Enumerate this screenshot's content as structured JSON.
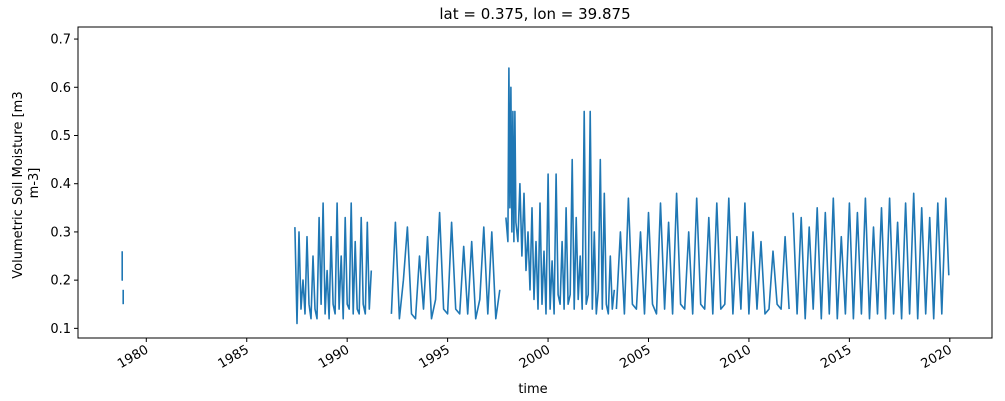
{
  "chart_data": {
    "type": "line",
    "title": "lat = 0.375, lon = 39.875",
    "xlabel": "time",
    "ylabel_lines": [
      "Volumetric Soil Moisture [m3",
      "m-3]"
    ],
    "xlim": [
      1976.6,
      2022.1
    ],
    "ylim": [
      0.08,
      0.725
    ],
    "x_ticks": [
      1980,
      1985,
      1990,
      1995,
      2000,
      2005,
      2010,
      2015,
      2020
    ],
    "x_tick_labels": [
      "1980",
      "1985",
      "1990",
      "1995",
      "2000",
      "2005",
      "2010",
      "2015",
      "2020"
    ],
    "y_ticks": [
      0.1,
      0.2,
      0.3,
      0.4,
      0.5,
      0.6,
      0.7
    ],
    "y_tick_labels": [
      "0.1",
      "0.2",
      "0.3",
      "0.4",
      "0.5",
      "0.6",
      "0.7"
    ],
    "grid": false,
    "series": [
      {
        "color": "#1f77b4",
        "segments": [
          {
            "x": [
              1978.8,
              1978.8,
              1978.8
            ],
            "y": [
              0.26,
              0.2,
              0.26
            ]
          },
          {
            "x": [
              1978.85,
              1978.85
            ],
            "y": [
              0.18,
              0.15
            ]
          },
          {
            "x": [
              1987.4,
              1987.5,
              1987.6,
              1987.7,
              1987.8,
              1987.9,
              1988.0,
              1988.1,
              1988.2,
              1988.3,
              1988.4,
              1988.5,
              1988.6,
              1988.7,
              1988.8,
              1988.9,
              1989.0,
              1989.1,
              1989.2,
              1989.3,
              1989.4,
              1989.5,
              1989.6,
              1989.7,
              1989.8,
              1989.9,
              1990.0,
              1990.1,
              1990.2,
              1990.3,
              1990.4,
              1990.5,
              1990.6,
              1990.7,
              1990.8,
              1990.9,
              1991.0,
              1991.1,
              1991.2
            ],
            "y": [
              0.31,
              0.11,
              0.3,
              0.14,
              0.2,
              0.13,
              0.29,
              0.15,
              0.12,
              0.25,
              0.14,
              0.12,
              0.33,
              0.15,
              0.36,
              0.13,
              0.22,
              0.12,
              0.29,
              0.15,
              0.13,
              0.36,
              0.14,
              0.25,
              0.12,
              0.33,
              0.15,
              0.14,
              0.36,
              0.13,
              0.28,
              0.14,
              0.13,
              0.33,
              0.15,
              0.13,
              0.32,
              0.14,
              0.22
            ]
          },
          {
            "x": [
              1992.2,
              1992.4,
              1992.6,
              1992.8,
              1993.0,
              1993.2,
              1993.4,
              1993.6,
              1993.8,
              1994.0,
              1994.2,
              1994.4,
              1994.6,
              1994.8,
              1995.0,
              1995.2,
              1995.4,
              1995.6,
              1995.8,
              1996.0,
              1996.2,
              1996.4,
              1996.6,
              1996.8,
              1997.0,
              1997.2,
              1997.4,
              1997.6
            ],
            "y": [
              0.13,
              0.32,
              0.12,
              0.2,
              0.31,
              0.13,
              0.12,
              0.25,
              0.14,
              0.29,
              0.12,
              0.16,
              0.34,
              0.14,
              0.13,
              0.32,
              0.14,
              0.13,
              0.27,
              0.13,
              0.28,
              0.12,
              0.16,
              0.31,
              0.13,
              0.3,
              0.12,
              0.18
            ]
          },
          {
            "x": [
              1997.9,
              1998.0,
              1998.05,
              1998.1,
              1998.15,
              1998.2,
              1998.25,
              1998.3,
              1998.35,
              1998.4,
              1998.5,
              1998.6,
              1998.7,
              1998.8,
              1998.9,
              1999.0,
              1999.1,
              1999.2,
              1999.3,
              1999.4,
              1999.5,
              1999.6,
              1999.7,
              1999.8,
              1999.9,
              2000.0,
              2000.1,
              2000.2,
              2000.3,
              2000.4,
              2000.5,
              2000.6,
              2000.7,
              2000.8,
              2000.9,
              2001.0,
              2001.1,
              2001.2,
              2001.3,
              2001.4,
              2001.5,
              2001.6,
              2001.7,
              2001.8,
              2001.9,
              2002.0,
              2002.1,
              2002.2,
              2002.3,
              2002.4,
              2002.5,
              2002.6,
              2002.7,
              2002.8,
              2002.9,
              2003.0,
              2003.1,
              2003.2,
              2003.3
            ],
            "y": [
              0.33,
              0.28,
              0.64,
              0.35,
              0.6,
              0.3,
              0.55,
              0.28,
              0.55,
              0.32,
              0.28,
              0.4,
              0.25,
              0.38,
              0.22,
              0.3,
              0.18,
              0.35,
              0.16,
              0.28,
              0.14,
              0.36,
              0.15,
              0.26,
              0.13,
              0.42,
              0.14,
              0.24,
              0.13,
              0.42,
              0.17,
              0.15,
              0.28,
              0.14,
              0.35,
              0.15,
              0.17,
              0.45,
              0.14,
              0.33,
              0.16,
              0.25,
              0.14,
              0.55,
              0.15,
              0.17,
              0.55,
              0.14,
              0.3,
              0.13,
              0.18,
              0.45,
              0.14,
              0.38,
              0.15,
              0.13,
              0.25,
              0.14,
              0.18
            ]
          },
          {
            "x": [
              2003.4,
              2003.6,
              2003.8,
              2004.0,
              2004.2,
              2004.4,
              2004.6,
              2004.8,
              2005.0,
              2005.2,
              2005.4,
              2005.6,
              2005.8,
              2006.0,
              2006.2,
              2006.4,
              2006.6,
              2006.8,
              2007.0,
              2007.2,
              2007.4,
              2007.6,
              2007.8,
              2008.0,
              2008.2,
              2008.4,
              2008.6,
              2008.8,
              2009.0,
              2009.2,
              2009.4,
              2009.6,
              2009.8,
              2010.0,
              2010.2,
              2010.4,
              2010.6,
              2010.8,
              2011.0,
              2011.2,
              2011.4,
              2011.6,
              2011.8,
              2012.0
            ],
            "y": [
              0.14,
              0.3,
              0.13,
              0.37,
              0.15,
              0.14,
              0.3,
              0.13,
              0.34,
              0.15,
              0.13,
              0.36,
              0.14,
              0.32,
              0.13,
              0.38,
              0.15,
              0.14,
              0.3,
              0.13,
              0.37,
              0.15,
              0.14,
              0.33,
              0.13,
              0.36,
              0.14,
              0.15,
              0.37,
              0.13,
              0.29,
              0.14,
              0.36,
              0.13,
              0.3,
              0.14,
              0.28,
              0.13,
              0.14,
              0.26,
              0.15,
              0.14,
              0.29,
              0.14
            ]
          },
          {
            "x": [
              2012.2,
              2012.4,
              2012.6,
              2012.8,
              2013.0,
              2013.2,
              2013.4,
              2013.6,
              2013.8,
              2014.0,
              2014.2,
              2014.4,
              2014.6,
              2014.8,
              2015.0,
              2015.2,
              2015.4,
              2015.6,
              2015.8,
              2016.0,
              2016.2,
              2016.4,
              2016.6,
              2016.8,
              2017.0,
              2017.2,
              2017.4,
              2017.6,
              2017.8,
              2018.0,
              2018.2,
              2018.4,
              2018.6,
              2018.8,
              2019.0,
              2019.2,
              2019.4,
              2019.6,
              2019.8,
              2019.95
            ],
            "y": [
              0.34,
              0.13,
              0.33,
              0.12,
              0.31,
              0.14,
              0.35,
              0.12,
              0.34,
              0.13,
              0.37,
              0.12,
              0.29,
              0.13,
              0.36,
              0.12,
              0.34,
              0.13,
              0.37,
              0.12,
              0.31,
              0.13,
              0.35,
              0.12,
              0.37,
              0.13,
              0.32,
              0.12,
              0.36,
              0.13,
              0.38,
              0.12,
              0.35,
              0.13,
              0.33,
              0.12,
              0.36,
              0.13,
              0.37,
              0.21
            ]
          }
        ]
      }
    ]
  }
}
